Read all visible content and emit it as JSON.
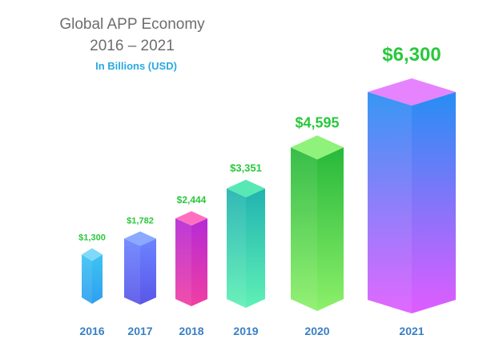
{
  "chart_data": {
    "type": "bar",
    "title": "Global APP Economy",
    "subtitle": "2016 – 2021",
    "unit_label": "In Billions (USD)",
    "categories": [
      "2016",
      "2017",
      "2018",
      "2019",
      "2020",
      "2021"
    ],
    "values": [
      1300,
      1782,
      2444,
      3351,
      4595,
      6300
    ],
    "value_labels": [
      "$1,300",
      "$1,782",
      "$2,444",
      "$3,351",
      "$4,595",
      "$6,300"
    ],
    "xlabel": "",
    "ylabel": "",
    "grid": false,
    "legend": "none"
  },
  "colors": {
    "value_label": "#29c83c",
    "year_label": "#3a7fc4",
    "title": "#6d6d6d",
    "subtitle": "#2aa9e0",
    "bars": [
      {
        "top": "#7fd9f8",
        "front_top": "#3ec3f2",
        "front_bottom": "#2f9ff0"
      },
      {
        "top": "#8aa9ff",
        "front_top": "#6b84ff",
        "front_bottom": "#5a56e8"
      },
      {
        "top": "#ff6fc0",
        "front_top": "#b62ad6",
        "front_bottom": "#f03fa3"
      },
      {
        "top": "#58e8b5",
        "front_top": "#21b3b0",
        "front_bottom": "#5ff0b6"
      },
      {
        "top": "#8ff27a",
        "front_top": "#27b83a",
        "front_bottom": "#8cf06a"
      },
      {
        "top": "#e683ff",
        "front_top": "#268ef4",
        "front_bottom": "#e05cff"
      }
    ]
  }
}
